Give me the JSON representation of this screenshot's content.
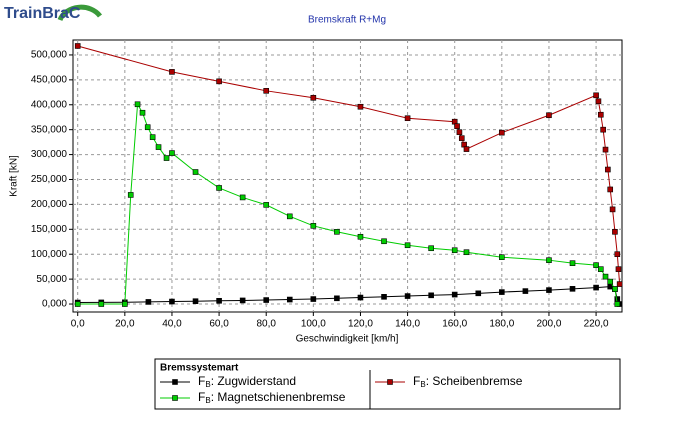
{
  "logo": "TrainBraC",
  "chart_data": {
    "type": "line",
    "title": "Bremskraft R+Mg",
    "x_label": "Geschwindigkeit [km/h]",
    "y_label": "Kraft [kN]",
    "xlim": [
      -2,
      231
    ],
    "ylim": [
      -16000,
      530000
    ],
    "xticks": [
      {
        "value": 0,
        "label": "0,0"
      },
      {
        "value": 20,
        "label": "20,0"
      },
      {
        "value": 40,
        "label": "40,0"
      },
      {
        "value": 60,
        "label": "60,0"
      },
      {
        "value": 80,
        "label": "80,0"
      },
      {
        "value": 100,
        "label": "100,0"
      },
      {
        "value": 120,
        "label": "120,0"
      },
      {
        "value": 140,
        "label": "140,0"
      },
      {
        "value": 160,
        "label": "160,0"
      },
      {
        "value": 180,
        "label": "180,0"
      },
      {
        "value": 200,
        "label": "200,0"
      },
      {
        "value": 220,
        "label": "220,0"
      }
    ],
    "yticks": [
      {
        "value": 0,
        "label": "0,000"
      },
      {
        "value": 50000,
        "label": "50,000"
      },
      {
        "value": 100000,
        "label": "100,000"
      },
      {
        "value": 150000,
        "label": "150,000"
      },
      {
        "value": 200000,
        "label": "200,000"
      },
      {
        "value": 250000,
        "label": "250,000"
      },
      {
        "value": 300000,
        "label": "300,000"
      },
      {
        "value": 350000,
        "label": "350,000"
      },
      {
        "value": 400000,
        "label": "400,000"
      },
      {
        "value": 450000,
        "label": "450,000"
      },
      {
        "value": 500000,
        "label": "500,000"
      }
    ],
    "grid": true,
    "legend_title": "Bremssystemart",
    "series": [
      {
        "name": "FB: Zugwiderstand",
        "color": "#000000",
        "x": [
          0,
          10,
          20,
          30,
          40,
          50,
          60,
          70,
          80,
          90,
          100,
          110,
          120,
          130,
          140,
          150,
          160,
          170,
          180,
          190,
          200,
          210,
          220,
          226,
          228,
          229,
          230
        ],
        "values": [
          3000,
          3200,
          3500,
          4200,
          5000,
          5700,
          6500,
          7200,
          8000,
          9000,
          10000,
          11500,
          13000,
          14500,
          16000,
          17500,
          19000,
          21500,
          24000,
          26000,
          28000,
          30500,
          33000,
          35000,
          30000,
          10000,
          0
        ]
      },
      {
        "name": "FB: Magnetschienenbremse",
        "color": "#00cc00",
        "x": [
          0,
          10,
          20,
          22.5,
          25.4,
          27.5,
          29.7,
          31.8,
          34.3,
          37.7,
          40,
          50,
          60,
          70,
          80,
          90,
          100,
          110,
          120,
          130,
          140,
          150,
          160,
          165,
          180,
          200,
          210,
          220,
          222,
          224,
          226,
          228,
          229
        ],
        "values": [
          0,
          0,
          0,
          219000,
          401000,
          384000,
          355000,
          335000,
          315000,
          293000,
          303000,
          265000,
          233000,
          214000,
          199000,
          176000,
          157000,
          145000,
          135000,
          126000,
          118000,
          112000,
          108000,
          104000,
          94000,
          88000,
          82000,
          78000,
          70000,
          55000,
          45000,
          30000,
          0
        ]
      },
      {
        "name": "FB: Scheibenbremse",
        "color": "#aa0000",
        "x": [
          0,
          40,
          60,
          80,
          100,
          120,
          140,
          160,
          161,
          162,
          163,
          164,
          165,
          180,
          200,
          220,
          221,
          222,
          223,
          224,
          225,
          226,
          227,
          228,
          229,
          229.5,
          230
        ],
        "values": [
          518000,
          466000,
          447000,
          428000,
          414000,
          396000,
          373000,
          366000,
          357000,
          345000,
          333000,
          320000,
          311000,
          344000,
          379000,
          419000,
          407000,
          380000,
          350000,
          310000,
          270000,
          230000,
          190000,
          145000,
          100000,
          70000,
          40000
        ]
      }
    ]
  }
}
